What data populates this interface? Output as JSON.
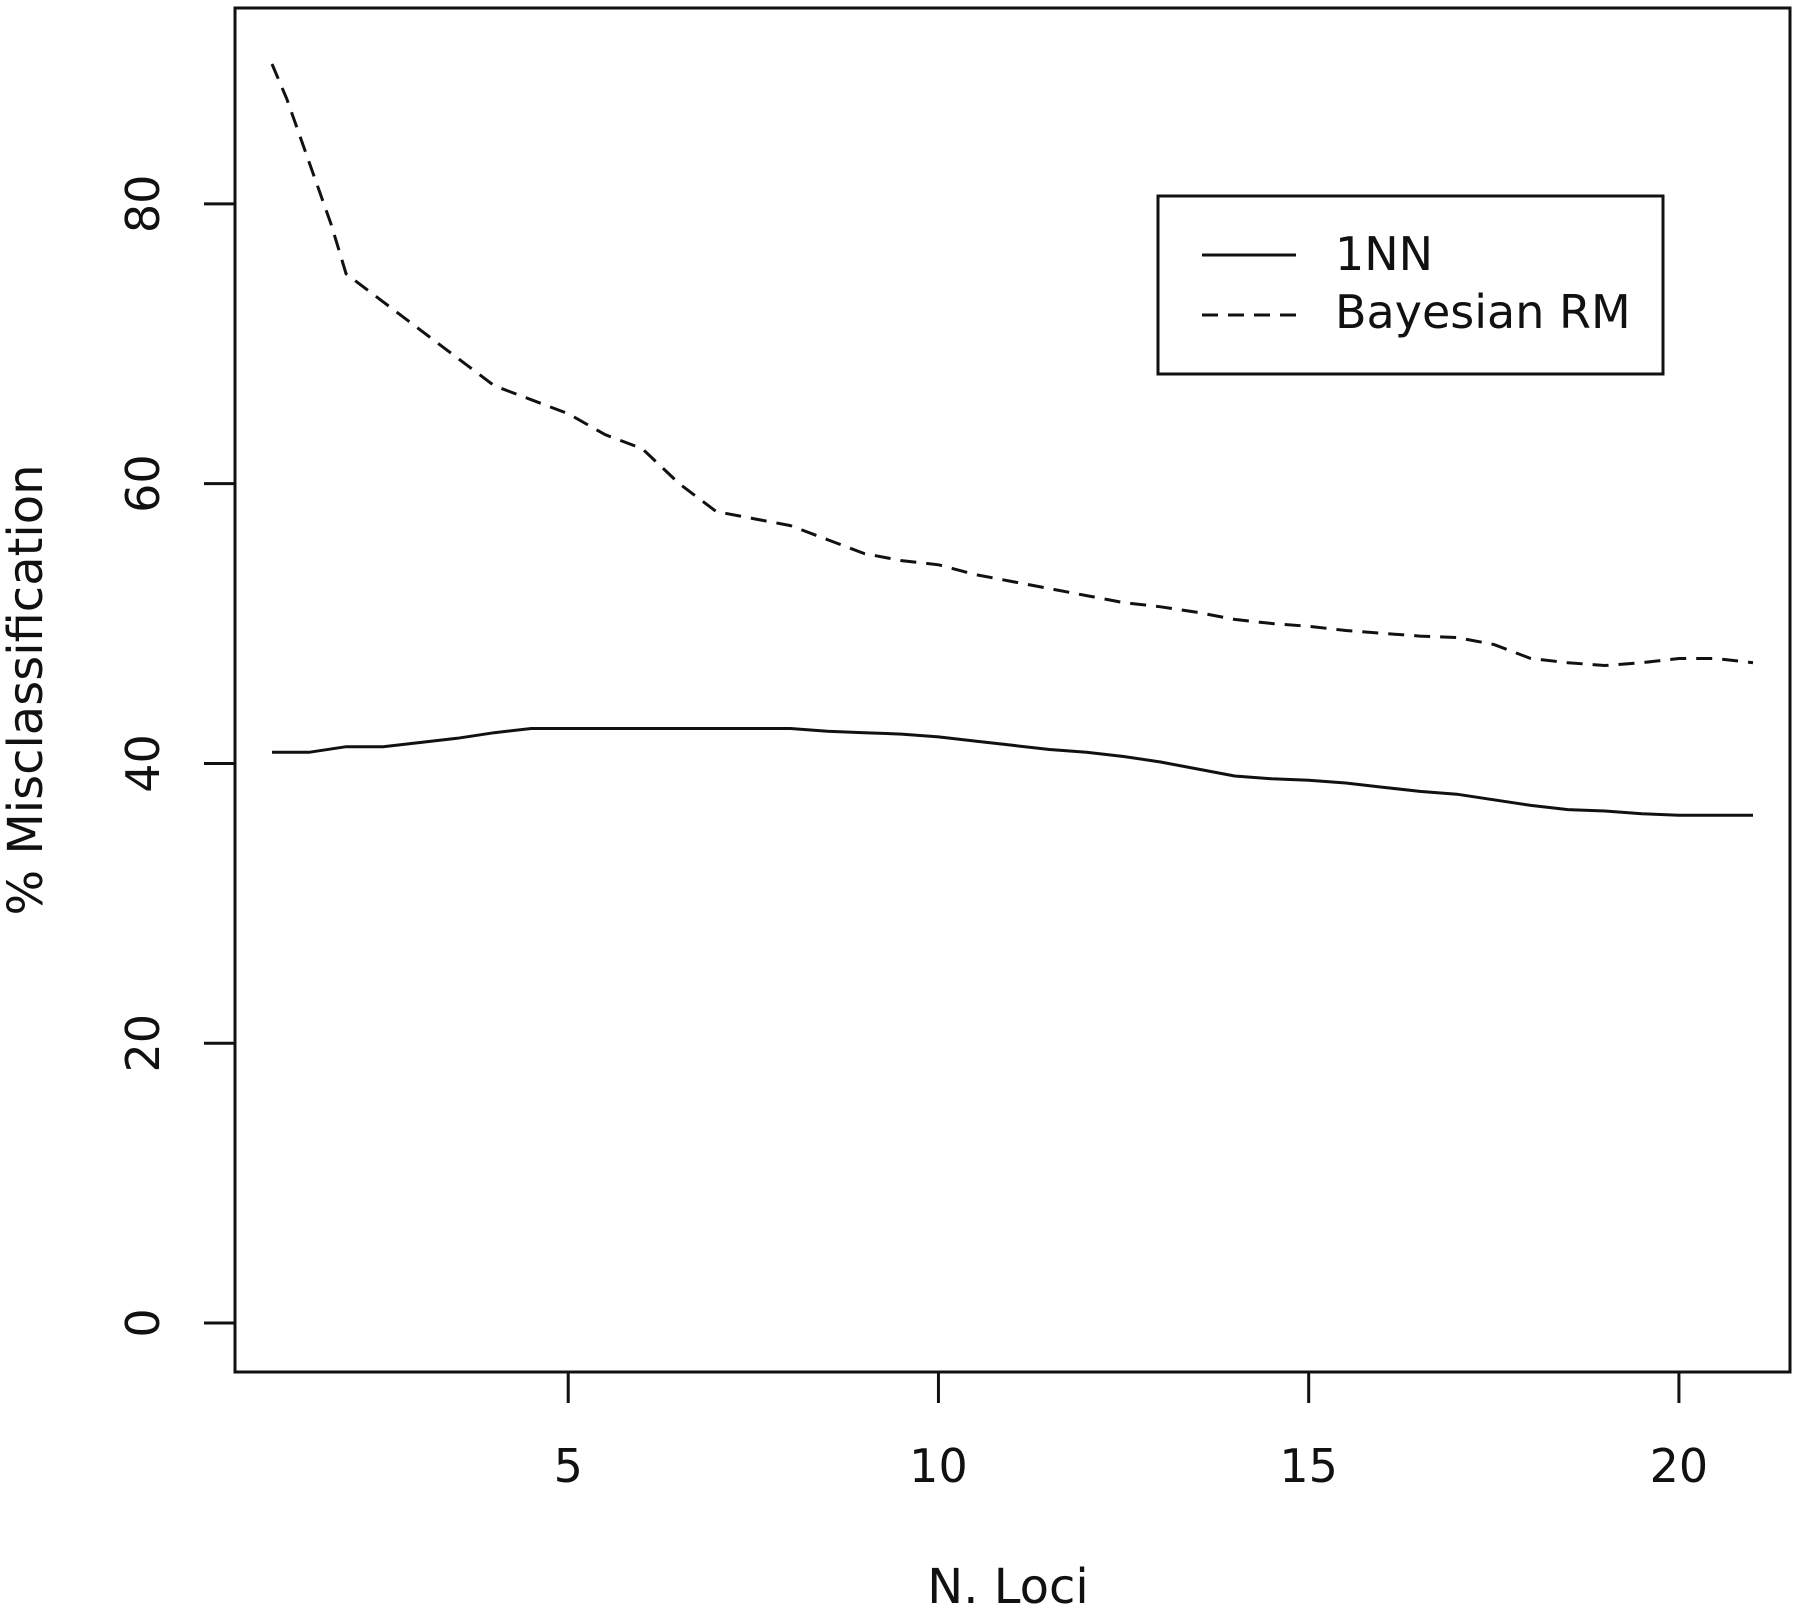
{
  "chart_data": {
    "type": "line",
    "title": "",
    "xlabel": "N. Loci",
    "ylabel": "% Misclassification",
    "xlim": [
      0.5,
      21.5
    ],
    "ylim": [
      -3.5,
      94
    ],
    "xticks": [
      5,
      10,
      15,
      20
    ],
    "yticks": [
      0,
      20,
      40,
      60,
      80
    ],
    "grid": false,
    "legend": {
      "position": "top-right",
      "entries": [
        {
          "label": "1NN",
          "style": "solid"
        },
        {
          "label": "Bayesian RM",
          "style": "dashed"
        }
      ]
    },
    "series": [
      {
        "name": "1NN",
        "style": "solid",
        "color": "#111111",
        "x": [
          1,
          1.5,
          2,
          2.5,
          3,
          3.5,
          4,
          4.5,
          5,
          6,
          7,
          8,
          8.5,
          9,
          9.5,
          10,
          10.5,
          11,
          11.5,
          12,
          12.5,
          13,
          13.5,
          14,
          14.5,
          15,
          15.5,
          16,
          16.5,
          17,
          17.5,
          18,
          18.5,
          19,
          19.5,
          20,
          21
        ],
        "y": [
          40.8,
          40.8,
          41.2,
          41.2,
          41.5,
          41.8,
          42.2,
          42.5,
          42.5,
          42.5,
          42.5,
          42.5,
          42.3,
          42.2,
          42.1,
          41.9,
          41.6,
          41.3,
          41.0,
          40.8,
          40.5,
          40.1,
          39.6,
          39.1,
          38.9,
          38.8,
          38.6,
          38.3,
          38.0,
          37.8,
          37.4,
          37.0,
          36.7,
          36.6,
          36.4,
          36.3,
          36.3
        ]
      },
      {
        "name": "Bayesian RM",
        "style": "dashed",
        "color": "#111111",
        "x": [
          1,
          1.2,
          1.5,
          1.8,
          2,
          2.5,
          3,
          3.5,
          4,
          4.5,
          5,
          5.5,
          6,
          6.5,
          7,
          7.5,
          8,
          8.5,
          9,
          9.5,
          10,
          10.5,
          11,
          11.5,
          12,
          12.5,
          13,
          13.5,
          14,
          14.5,
          15,
          15.5,
          16,
          16.5,
          17,
          17.5,
          18,
          18.5,
          19,
          19.5,
          20,
          20.5,
          21
        ],
        "y": [
          90,
          87.5,
          83,
          78.5,
          75,
          73,
          71,
          69,
          67,
          66,
          65,
          63.5,
          62.5,
          60,
          58,
          57.5,
          57,
          56,
          55,
          54.5,
          54.2,
          53.5,
          53,
          52.5,
          52,
          51.5,
          51.2,
          50.8,
          50.3,
          50,
          49.8,
          49.5,
          49.3,
          49.1,
          49,
          48.5,
          47.5,
          47.2,
          47,
          47.2,
          47.5,
          47.5,
          47.2
        ]
      }
    ]
  }
}
